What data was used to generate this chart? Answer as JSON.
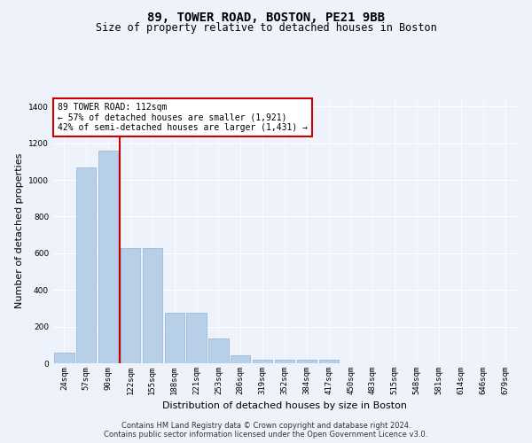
{
  "title_line1": "89, TOWER ROAD, BOSTON, PE21 9BB",
  "title_line2": "Size of property relative to detached houses in Boston",
  "xlabel": "Distribution of detached houses by size in Boston",
  "ylabel": "Number of detached properties",
  "bar_labels": [
    "24sqm",
    "57sqm",
    "90sqm",
    "122sqm",
    "155sqm",
    "188sqm",
    "221sqm",
    "253sqm",
    "286sqm",
    "319sqm",
    "352sqm",
    "384sqm",
    "417sqm",
    "450sqm",
    "483sqm",
    "515sqm",
    "548sqm",
    "581sqm",
    "614sqm",
    "646sqm",
    "679sqm"
  ],
  "bar_values": [
    60,
    1070,
    1160,
    630,
    630,
    275,
    275,
    135,
    45,
    20,
    20,
    20,
    20,
    0,
    0,
    0,
    0,
    0,
    0,
    0,
    0
  ],
  "bar_color": "#b8cfe8",
  "bar_edge_color": "#8fb0d8",
  "vline_position": 2.5,
  "vline_color": "#cc0000",
  "annotation_text": "89 TOWER ROAD: 112sqm\n← 57% of detached houses are smaller (1,921)\n42% of semi-detached houses are larger (1,431) →",
  "annotation_box_facecolor": "#ffffff",
  "annotation_box_edgecolor": "#cc0000",
  "ylim": [
    0,
    1450
  ],
  "yticks": [
    0,
    200,
    400,
    600,
    800,
    1000,
    1200,
    1400
  ],
  "background_color": "#eef2fb",
  "grid_color": "#ffffff",
  "footer_line1": "Contains HM Land Registry data © Crown copyright and database right 2024.",
  "footer_line2": "Contains public sector information licensed under the Open Government Licence v3.0.",
  "title_fontsize": 10,
  "subtitle_fontsize": 8.5,
  "xlabel_fontsize": 8,
  "ylabel_fontsize": 8,
  "tick_fontsize": 6.5,
  "annotation_fontsize": 7,
  "footer_fontsize": 6
}
